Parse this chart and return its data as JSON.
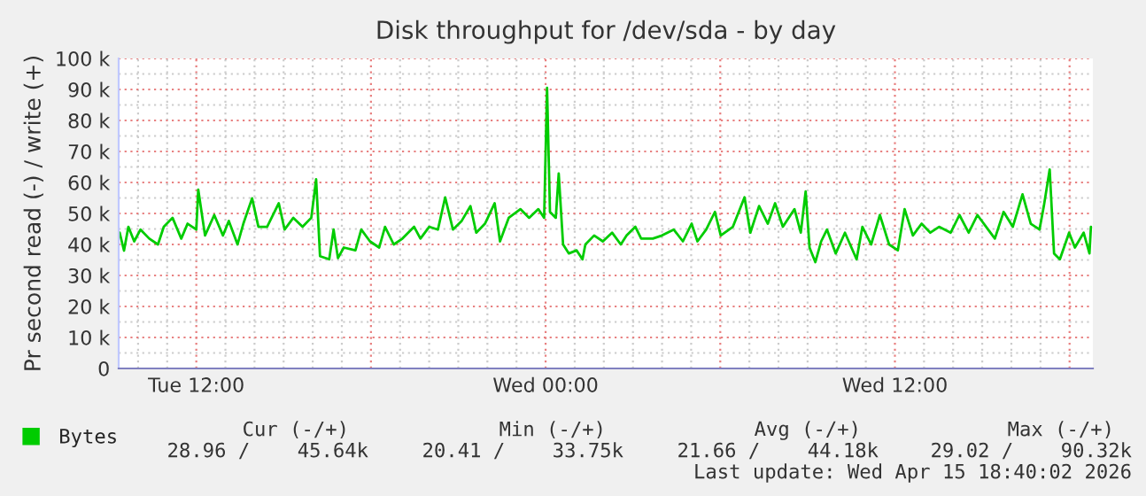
{
  "chart_data": {
    "type": "line",
    "title": "Disk throughput for /dev/sda - by day",
    "ylabel": "Pr second read (-) / write (+)",
    "x": [
      "2026-04-14T09:22",
      "2026-04-14T09:31",
      "2026-04-14T09:40",
      "2026-04-14T09:52",
      "2026-04-14T10:05",
      "2026-04-14T10:23",
      "2026-04-14T10:41",
      "2026-04-14T10:53",
      "2026-04-14T11:11",
      "2026-04-14T11:29",
      "2026-04-14T11:42",
      "2026-04-14T12:00",
      "2026-04-14T12:04",
      "2026-04-14T12:18",
      "2026-04-14T12:37",
      "2026-04-14T12:55",
      "2026-04-14T13:07",
      "2026-04-14T13:25",
      "2026-04-14T13:37",
      "2026-04-14T13:55",
      "2026-04-14T14:08",
      "2026-04-14T14:26",
      "2026-04-14T14:50",
      "2026-04-14T15:02",
      "2026-04-14T15:20",
      "2026-04-14T15:39",
      "2026-04-14T15:57",
      "2026-04-14T16:07",
      "2026-04-14T16:15",
      "2026-04-14T16:34",
      "2026-04-14T16:43",
      "2026-04-14T16:52",
      "2026-04-14T17:04",
      "2026-04-14T17:28",
      "2026-04-14T17:40",
      "2026-04-14T17:58",
      "2026-04-14T18:17",
      "2026-04-14T18:29",
      "2026-04-14T18:47",
      "2026-04-14T19:05",
      "2026-04-14T19:29",
      "2026-04-14T19:42",
      "2026-04-14T20:00",
      "2026-04-14T20:18",
      "2026-04-14T20:33",
      "2026-04-14T20:49",
      "2026-04-14T21:07",
      "2026-04-14T21:25",
      "2026-04-14T21:37",
      "2026-04-14T21:55",
      "2026-04-14T22:15",
      "2026-04-14T22:26",
      "2026-04-14T22:44",
      "2026-04-14T23:08",
      "2026-04-14T23:26",
      "2026-04-14T23:45",
      "2026-04-14T23:57",
      "2026-04-15T00:03",
      "2026-04-15T00:09",
      "2026-04-15T00:21",
      "2026-04-15T00:27",
      "2026-04-15T00:36",
      "2026-04-15T00:48",
      "2026-04-15T01:04",
      "2026-04-15T01:16",
      "2026-04-15T01:22",
      "2026-04-15T01:40",
      "2026-04-15T01:58",
      "2026-04-15T02:17",
      "2026-04-15T02:35",
      "2026-04-15T02:47",
      "2026-04-15T03:05",
      "2026-04-15T03:17",
      "2026-04-15T03:41",
      "2026-04-15T04:00",
      "2026-04-15T04:24",
      "2026-04-15T04:43",
      "2026-04-15T05:01",
      "2026-04-15T05:13",
      "2026-04-15T05:31",
      "2026-04-15T05:49",
      "2026-04-15T06:01",
      "2026-04-15T06:26",
      "2026-04-15T06:50",
      "2026-04-15T07:02",
      "2026-04-15T07:20",
      "2026-04-15T07:38",
      "2026-04-15T07:53",
      "2026-04-15T08:09",
      "2026-04-15T08:33",
      "2026-04-15T08:46",
      "2026-04-15T08:56",
      "2026-04-15T09:04",
      "2026-04-15T09:16",
      "2026-04-15T09:28",
      "2026-04-15T09:40",
      "2026-04-15T09:58",
      "2026-04-15T10:17",
      "2026-04-15T10:41",
      "2026-04-15T10:53",
      "2026-04-15T11:11",
      "2026-04-15T11:29",
      "2026-04-15T11:48",
      "2026-04-15T12:06",
      "2026-04-15T12:20",
      "2026-04-15T12:37",
      "2026-04-15T12:55",
      "2026-04-15T13:13",
      "2026-04-15T13:31",
      "2026-04-15T13:55",
      "2026-04-15T14:13",
      "2026-04-15T14:32",
      "2026-04-15T14:50",
      "2026-04-15T15:08",
      "2026-04-15T15:26",
      "2026-04-15T15:44",
      "2026-04-15T16:03",
      "2026-04-15T16:23",
      "2026-04-15T16:40",
      "2026-04-15T16:58",
      "2026-04-15T17:07",
      "2026-04-15T17:19",
      "2026-04-15T17:28",
      "2026-04-15T17:40",
      "2026-04-15T17:59",
      "2026-04-15T18:11",
      "2026-04-15T18:29",
      "2026-04-15T18:41",
      "2026-04-15T18:44"
    ],
    "series": [
      {
        "name": "Bytes",
        "color": "#00cc00",
        "values": [
          43800,
          38000,
          45700,
          41000,
          44800,
          41900,
          40000,
          45700,
          48600,
          41900,
          46700,
          44800,
          57700,
          42900,
          49500,
          42900,
          47600,
          40000,
          46700,
          54900,
          45700,
          45700,
          53300,
          44800,
          48600,
          45700,
          48600,
          61000,
          36200,
          35200,
          44800,
          35600,
          39000,
          38100,
          44800,
          41000,
          39000,
          45700,
          40000,
          41900,
          45700,
          41900,
          45700,
          44800,
          55200,
          44800,
          47600,
          52400,
          43800,
          46700,
          53300,
          41000,
          48600,
          51400,
          48600,
          51400,
          48600,
          90500,
          50500,
          48600,
          62900,
          40000,
          37100,
          38100,
          35200,
          40000,
          42900,
          41000,
          43800,
          40000,
          42900,
          45700,
          41900,
          41900,
          42900,
          44800,
          41000,
          46700,
          41000,
          44800,
          50500,
          42900,
          45700,
          55200,
          43800,
          52400,
          46700,
          53300,
          45700,
          51400,
          43800,
          57100,
          39000,
          34300,
          41000,
          44800,
          37100,
          43800,
          35200,
          45700,
          40000,
          49500,
          40000,
          38100,
          51400,
          42900,
          46700,
          43800,
          45700,
          43800,
          49500,
          43800,
          49500,
          45700,
          41900,
          50500,
          45700,
          56200,
          46700,
          44800,
          52400,
          64200,
          37100,
          35200,
          43800,
          39000,
          43800,
          37100,
          45700
        ]
      }
    ],
    "xlim": [
      "2026-04-14T09:20",
      "2026-04-15T18:48"
    ],
    "xticks": [
      {
        "value": "2026-04-14T12:00",
        "label": "Tue 12:00"
      },
      {
        "value": "2026-04-14T18:00",
        "label": null
      },
      {
        "value": "2026-04-15T00:00",
        "label": "Wed 00:00"
      },
      {
        "value": "2026-04-15T06:00",
        "label": null
      },
      {
        "value": "2026-04-15T12:00",
        "label": "Wed 12:00"
      },
      {
        "value": "2026-04-15T18:00",
        "label": null
      }
    ],
    "ylim": [
      0,
      100000
    ],
    "yticks": [
      0,
      {
        "value": 10000,
        "label": "10 k"
      },
      {
        "value": 20000,
        "label": "20 k"
      },
      {
        "value": 30000,
        "label": "30 k"
      },
      {
        "value": 40000,
        "label": "40 k"
      },
      {
        "value": 50000,
        "label": "50 k"
      },
      {
        "value": 60000,
        "label": "60 k"
      },
      {
        "value": 70000,
        "label": "70 k"
      },
      {
        "value": 80000,
        "label": "80 k"
      },
      {
        "value": 90000,
        "label": "90 k"
      },
      {
        "value": 100000,
        "label": "100 k"
      }
    ],
    "grid": true,
    "legend": "bottom left",
    "marker": "none",
    "line_style": "solid",
    "annotations": [
      "Cur (-/+)",
      "Min (-/+)",
      "Avg (-/+)",
      "Max (-/+)",
      "28.96 /    45.64k",
      "20.41 /    33.75k",
      "21.66 /    44.18k",
      "29.02 /    90.32k",
      "Last update: Wed Apr 15 18:40:02 2026"
    ]
  }
}
